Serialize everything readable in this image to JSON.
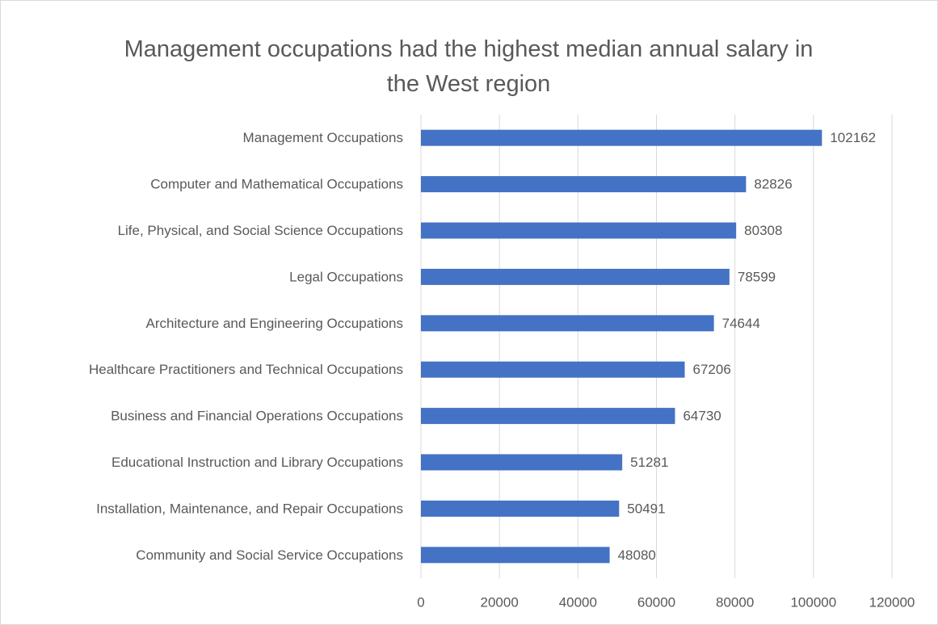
{
  "chart_data": {
    "type": "bar",
    "orientation": "horizontal",
    "title": "Management occupations had the highest median annual salary in the West region",
    "categories": [
      "Management Occupations",
      "Computer and Mathematical Occupations",
      "Life, Physical, and Social Science Occupations",
      "Legal Occupations",
      "Architecture and Engineering Occupations",
      "Healthcare Practitioners and Technical Occupations",
      "Business and Financial Operations Occupations",
      "Educational Instruction and Library Occupations",
      "Installation, Maintenance, and Repair Occupations",
      "Community and Social Service Occupations"
    ],
    "values": [
      102162,
      82826,
      80308,
      78599,
      74644,
      67206,
      64730,
      51281,
      50491,
      48080
    ],
    "color": "#4472c4",
    "xlim": [
      0,
      120000
    ],
    "xticks": [
      0,
      20000,
      40000,
      60000,
      80000,
      100000,
      120000
    ],
    "grid": true
  }
}
